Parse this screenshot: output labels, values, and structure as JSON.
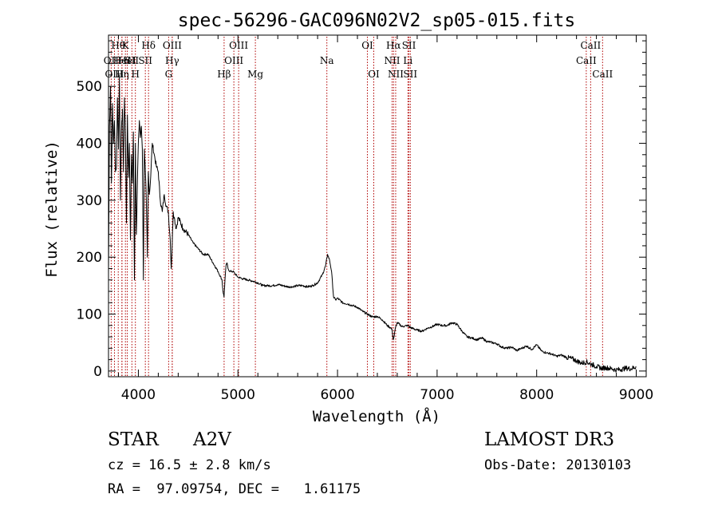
{
  "chart_data": {
    "type": "line",
    "title": "spec-56296-GAC096N02V2_sp05-015.fits",
    "xlabel": "Wavelength (Å)",
    "ylabel": "Flux (relative)",
    "xlim": [
      3700,
      9100
    ],
    "ylim": [
      -10,
      590
    ],
    "xticks": [
      4000,
      5000,
      6000,
      7000,
      8000,
      9000
    ],
    "yticks": [
      0,
      100,
      200,
      300,
      400,
      500
    ],
    "line_color": "#b00000",
    "spectrum_color": "#000000",
    "spectrum": {
      "x": [
        3700,
        3710,
        3720,
        3730,
        3740,
        3750,
        3760,
        3770,
        3780,
        3790,
        3800,
        3810,
        3820,
        3830,
        3840,
        3850,
        3860,
        3870,
        3880,
        3890,
        3900,
        3910,
        3920,
        3930,
        3940,
        3950,
        3960,
        3970,
        3980,
        3990,
        4000,
        4010,
        4020,
        4030,
        4040,
        4050,
        4060,
        4070,
        4080,
        4090,
        4100,
        4110,
        4120,
        4140,
        4160,
        4180,
        4200,
        4220,
        4240,
        4260,
        4280,
        4300,
        4320,
        4330,
        4340,
        4350,
        4360,
        4380,
        4400,
        4450,
        4500,
        4550,
        4600,
        4650,
        4700,
        4750,
        4800,
        4840,
        4850,
        4860,
        4870,
        4880,
        4890,
        4900,
        4920,
        4950,
        5000,
        5050,
        5100,
        5150,
        5200,
        5250,
        5300,
        5350,
        5400,
        5450,
        5500,
        5550,
        5600,
        5650,
        5700,
        5750,
        5800,
        5850,
        5880,
        5900,
        5920,
        5940,
        5960,
        5980,
        6000,
        6050,
        6100,
        6150,
        6200,
        6250,
        6300,
        6350,
        6400,
        6450,
        6500,
        6540,
        6550,
        6560,
        6570,
        6580,
        6600,
        6650,
        6700,
        6750,
        6800,
        6850,
        6900,
        6950,
        7000,
        7050,
        7100,
        7150,
        7200,
        7250,
        7300,
        7350,
        7400,
        7450,
        7500,
        7550,
        7600,
        7650,
        7700,
        7750,
        7800,
        7850,
        7900,
        7950,
        8000,
        8050,
        8100,
        8150,
        8200,
        8250,
        8300,
        8350,
        8400,
        8450,
        8500,
        8550,
        8600,
        8650,
        8700,
        8750,
        8800,
        8850,
        8900,
        8950,
        9000
      ],
      "y": [
        170,
        430,
        500,
        330,
        470,
        400,
        440,
        350,
        360,
        480,
        390,
        520,
        300,
        420,
        460,
        350,
        480,
        420,
        260,
        450,
        340,
        400,
        230,
        380,
        330,
        420,
        160,
        400,
        240,
        330,
        400,
        440,
        410,
        430,
        390,
        160,
        390,
        350,
        300,
        200,
        350,
        310,
        330,
        400,
        380,
        360,
        350,
        300,
        280,
        310,
        290,
        280,
        230,
        180,
        225,
        280,
        270,
        250,
        270,
        250,
        240,
        225,
        215,
        205,
        205,
        190,
        175,
        160,
        140,
        130,
        160,
        185,
        190,
        180,
        175,
        175,
        165,
        162,
        160,
        158,
        155,
        150,
        150,
        150,
        152,
        150,
        148,
        148,
        150,
        150,
        148,
        150,
        155,
        170,
        185,
        205,
        195,
        175,
        130,
        125,
        128,
        120,
        118,
        115,
        112,
        105,
        100,
        95,
        96,
        90,
        80,
        75,
        70,
        55,
        62,
        75,
        85,
        78,
        80,
        75,
        72,
        70,
        75,
        78,
        82,
        80,
        80,
        85,
        82,
        70,
        60,
        58,
        55,
        58,
        52,
        50,
        48,
        42,
        40,
        42,
        36,
        40,
        44,
        38,
        46,
        35,
        32,
        30,
        26,
        28,
        24,
        22,
        18,
        14,
        16,
        12,
        8,
        5,
        6,
        4,
        2,
        3,
        5,
        4,
        8
      ]
    },
    "lines": [
      {
        "label": "OII",
        "x": 3727,
        "row": 1
      },
      {
        "label": "OIII",
        "x": 3760,
        "row": 2
      },
      {
        "label": "Hθ",
        "x": 3798,
        "row": 0
      },
      {
        "label": "HeI",
        "x": 3835,
        "row": 1
      },
      {
        "label": "Hη",
        "x": 3835,
        "row": 2
      },
      {
        "label": "K",
        "x": 3870,
        "row": 0
      },
      {
        "label": "HeI",
        "x": 3889,
        "row": 1
      },
      {
        "label": "SII",
        "x": 3935,
        "row": 1
      },
      {
        "label": "H",
        "x": 3970,
        "row": 2
      },
      {
        "label": "Hδ",
        "x": 4102,
        "row": 0
      },
      {
        "label": "SII",
        "x": 4070,
        "row": 1
      },
      {
        "label": "OIII",
        "x": 4340,
        "row": 0
      },
      {
        "label": "Hγ",
        "x": 4340,
        "row": 1
      },
      {
        "label": "G",
        "x": 4304,
        "row": 2
      },
      {
        "label": "Hβ",
        "x": 4861,
        "row": 2
      },
      {
        "label": "OIII",
        "x": 5007,
        "row": 0
      },
      {
        "label": "OIII",
        "x": 4959,
        "row": 1
      },
      {
        "label": "Mg",
        "x": 5175,
        "row": 2
      },
      {
        "label": "Na",
        "x": 5893,
        "row": 1
      },
      {
        "label": "OI",
        "x": 6300,
        "row": 0
      },
      {
        "label": "OI",
        "x": 6364,
        "row": 2
      },
      {
        "label": "Hα",
        "x": 6563,
        "row": 0
      },
      {
        "label": "NII",
        "x": 6548,
        "row": 1
      },
      {
        "label": "NII",
        "x": 6584,
        "row": 2
      },
      {
        "label": "SII",
        "x": 6717,
        "row": 0
      },
      {
        "label": "Li",
        "x": 6707,
        "row": 1
      },
      {
        "label": "SII",
        "x": 6731,
        "row": 2
      },
      {
        "label": "CaII",
        "x": 8542,
        "row": 0
      },
      {
        "label": "CaII",
        "x": 8498,
        "row": 1
      },
      {
        "label": "CaII",
        "x": 8662,
        "row": 2
      }
    ]
  },
  "footer": {
    "class_label": "STAR",
    "subclass": "A2V",
    "survey": "LAMOST DR3",
    "redshift": "cz = 16.5 ± 2.8 km/s",
    "obs_date": "Obs-Date: 20130103",
    "coords": "RA =  97.09754, DEC =   1.61175"
  }
}
